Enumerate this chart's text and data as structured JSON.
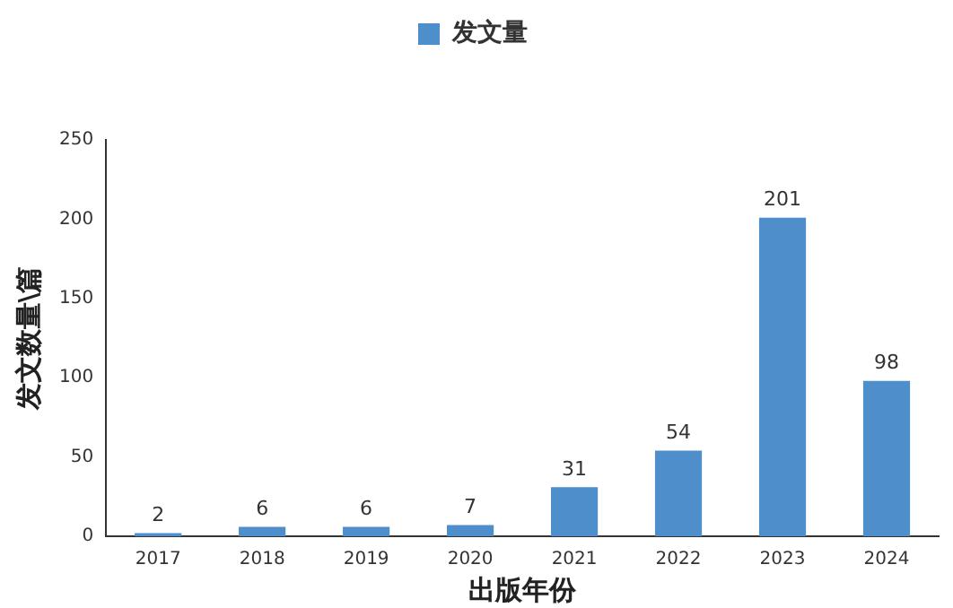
{
  "chart_data": {
    "type": "bar",
    "xlabel": "出版年份",
    "ylabel": "发文数量\\篇",
    "categories": [
      "2017",
      "2018",
      "2019",
      "2020",
      "2021",
      "2022",
      "2023",
      "2024"
    ],
    "series": [
      {
        "name": "发文量",
        "color": "#4e8ecb",
        "values": [
          2,
          6,
          6,
          7,
          31,
          54,
          201,
          98
        ]
      }
    ],
    "ylim": [
      0,
      250
    ],
    "yticks": [
      0,
      50,
      100,
      150,
      200,
      250
    ],
    "grid": false,
    "legend": "top",
    "data_labels": true
  }
}
